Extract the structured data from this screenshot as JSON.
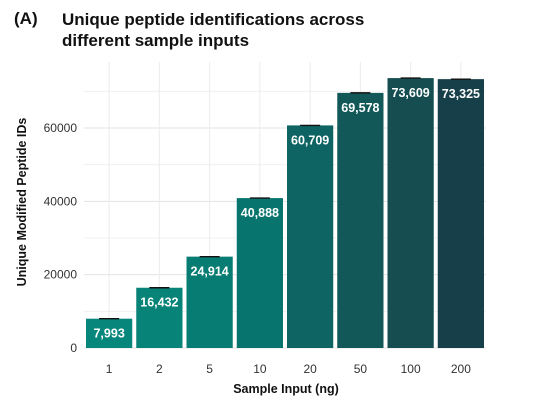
{
  "panel_label": "(A)",
  "title_lines": [
    "Unique peptide identifications across",
    "different sample inputs"
  ],
  "chart_data": {
    "type": "bar",
    "title": "Unique peptide identifications across different sample inputs",
    "xlabel": "Sample Input (ng)",
    "ylabel": "Unique Modified Peptide IDs",
    "categories": [
      "1",
      "2",
      "5",
      "10",
      "20",
      "50",
      "100",
      "200"
    ],
    "values": [
      7993,
      16432,
      24914,
      40888,
      60709,
      69578,
      73609,
      73325
    ],
    "value_labels": [
      "7,993",
      "16,432",
      "24,914",
      "40,888",
      "60,709",
      "69,578",
      "73,609",
      "73,325"
    ],
    "ylim": [
      0,
      78000
    ],
    "yticks": [
      0,
      20000,
      40000,
      60000
    ],
    "ytick_labels": [
      "0",
      "20000",
      "40000",
      "60000"
    ],
    "error_bars": true,
    "grid": true,
    "bar_colors": [
      "#07877b",
      "#078377",
      "#077c72",
      "#07756d",
      "#0d6463",
      "#125858",
      "#154d51",
      "#163f49"
    ]
  }
}
